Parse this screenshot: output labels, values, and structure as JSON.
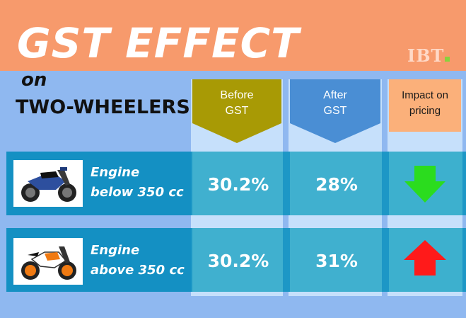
{
  "title": "GST EFFECT",
  "brand": "IBT",
  "subtitle_on": "on",
  "subtitle_main": "TWO-WHEELERS",
  "columns": {
    "before": {
      "line1": "Before",
      "line2": "GST"
    },
    "after": {
      "line1": "After",
      "line2": "GST"
    },
    "impact": {
      "line1": "Impact on",
      "line2": "pricing"
    }
  },
  "rows": [
    {
      "engine_line1": "Engine",
      "engine_line2": "below 350 cc",
      "before": "30.2%",
      "after": "28%",
      "impact": "down",
      "impact_icon": "green-down-arrow-icon",
      "impact_color": "#2bdc1e",
      "bike_icon": "blue-motorcycle-icon"
    },
    {
      "engine_line1": "Engine",
      "engine_line2": "above 350 cc",
      "before": "30.2%",
      "after": "31%",
      "impact": "up",
      "impact_icon": "red-up-arrow-icon",
      "impact_color": "#ff1a1a",
      "bike_icon": "orange-motorcycle-icon"
    }
  ],
  "colors": {
    "header_bg": "#f79a6c",
    "page_bg": "#8fb8f0",
    "before_col": "#a89a05",
    "after_col": "#4a8ed4",
    "impact_col": "#fbb07a",
    "row_dark": "#1490c3",
    "row_light": "#40b0cf"
  }
}
